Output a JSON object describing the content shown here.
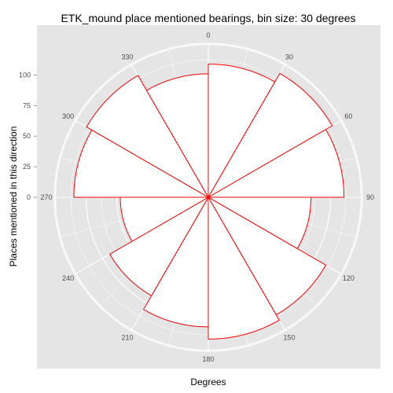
{
  "chart_data": {
    "type": "bar",
    "coord": "polar",
    "title": "ETK_mound place mentioned bearings, bin size: 30 degrees",
    "xlabel": "Degrees",
    "ylabel": "Places mentioned in this direction",
    "categories": [
      "0",
      "30",
      "60",
      "90",
      "120",
      "150",
      "180",
      "210",
      "240",
      "270",
      "300",
      "330"
    ],
    "values": [
      109,
      117,
      111,
      84,
      111,
      116,
      106,
      93,
      72,
      110,
      115,
      101
    ],
    "radial_ticks": [
      0,
      25,
      50,
      75,
      100
    ],
    "radial_tick_labels": [
      "0",
      "25",
      "50",
      "75",
      "100"
    ],
    "angle_labels": [
      "0",
      "30",
      "60",
      "90",
      "120",
      "150",
      "180",
      "210",
      "240",
      "270",
      "300",
      "330"
    ],
    "ylim": [
      0,
      126
    ],
    "bin_size_degrees": 30,
    "colors": {
      "panel_background": "#e5e5e5",
      "grid": "#ffffff",
      "bar_fill": "#ffffff",
      "bar_outline": "#ff0000",
      "text": "#000000",
      "tick_text": "#4d4d4d"
    }
  }
}
